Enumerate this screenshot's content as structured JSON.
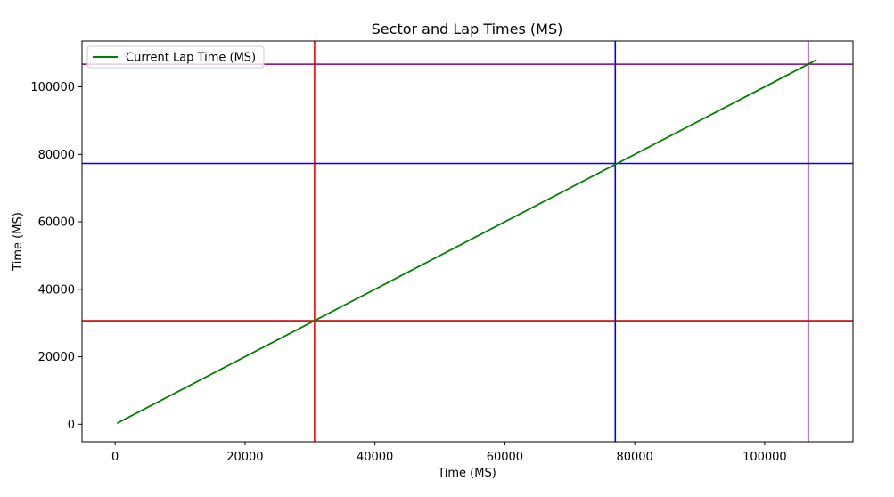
{
  "chart_data": {
    "type": "line",
    "title": "Sector and Lap Times (MS)",
    "xlabel": "Time (MS)",
    "ylabel": "Time (MS)",
    "xlim": [
      -5100,
      113600
    ],
    "ylim": [
      -5200,
      113600
    ],
    "xticks": [
      0,
      20000,
      40000,
      60000,
      80000,
      100000
    ],
    "yticks": [
      0,
      20000,
      40000,
      60000,
      80000,
      100000
    ],
    "grid": false,
    "legend_position": "upper-left",
    "series": [
      {
        "name": "Current Lap Time (MS)",
        "color": "#008000",
        "x": [
          300,
          108000
        ],
        "y": [
          300,
          108000
        ]
      }
    ],
    "reference_lines": [
      {
        "orientation": "vertical",
        "value": 30700,
        "color": "#ff0000"
      },
      {
        "orientation": "horizontal",
        "value": 30700,
        "color": "#cc0000"
      },
      {
        "orientation": "vertical",
        "value": 77000,
        "color": "#0000ff"
      },
      {
        "orientation": "horizontal",
        "value": 77300,
        "color": "#0000ff"
      },
      {
        "orientation": "vertical",
        "value": 106700,
        "color": "#800080"
      },
      {
        "orientation": "horizontal",
        "value": 106700,
        "color": "#800080"
      }
    ]
  }
}
